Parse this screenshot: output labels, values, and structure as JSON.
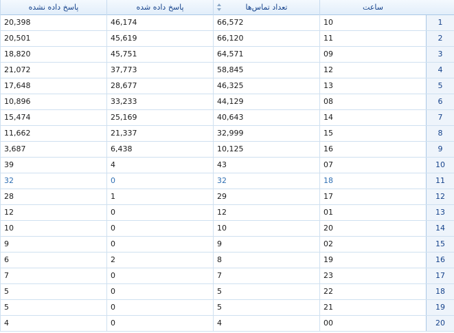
{
  "columns": {
    "hour": "ساعت",
    "calls": "تعداد تماس‌ها",
    "answered": "پاسخ داده شده",
    "unanswered": "پاسخ داده نشده"
  },
  "sort_icon": "sort-arrows-icon",
  "rows": [
    {
      "n": "1",
      "hour": "10",
      "calls": "66,572",
      "answered": "46,174",
      "unanswered": "20,398"
    },
    {
      "n": "2",
      "hour": "11",
      "calls": "66,120",
      "answered": "45,619",
      "unanswered": "20,501"
    },
    {
      "n": "3",
      "hour": "09",
      "calls": "64,571",
      "answered": "45,751",
      "unanswered": "18,820"
    },
    {
      "n": "4",
      "hour": "12",
      "calls": "58,845",
      "answered": "37,773",
      "unanswered": "21,072"
    },
    {
      "n": "5",
      "hour": "13",
      "calls": "46,325",
      "answered": "28,677",
      "unanswered": "17,648"
    },
    {
      "n": "6",
      "hour": "08",
      "calls": "44,129",
      "answered": "33,233",
      "unanswered": "10,896"
    },
    {
      "n": "7",
      "hour": "14",
      "calls": "40,643",
      "answered": "25,169",
      "unanswered": "15,474"
    },
    {
      "n": "8",
      "hour": "15",
      "calls": "32,999",
      "answered": "21,337",
      "unanswered": "11,662"
    },
    {
      "n": "9",
      "hour": "16",
      "calls": "10,125",
      "answered": "6,438",
      "unanswered": "3,687"
    },
    {
      "n": "10",
      "hour": "07",
      "calls": "43",
      "answered": "4",
      "unanswered": "39"
    },
    {
      "n": "11",
      "hour": "18",
      "calls": "32",
      "answered": "0",
      "unanswered": "32"
    },
    {
      "n": "12",
      "hour": "17",
      "calls": "29",
      "answered": "1",
      "unanswered": "28"
    },
    {
      "n": "13",
      "hour": "01",
      "calls": "12",
      "answered": "0",
      "unanswered": "12"
    },
    {
      "n": "14",
      "hour": "20",
      "calls": "10",
      "answered": "0",
      "unanswered": "10"
    },
    {
      "n": "15",
      "hour": "02",
      "calls": "9",
      "answered": "0",
      "unanswered": "9"
    },
    {
      "n": "16",
      "hour": "19",
      "calls": "8",
      "answered": "2",
      "unanswered": "6"
    },
    {
      "n": "17",
      "hour": "23",
      "calls": "7",
      "answered": "0",
      "unanswered": "7"
    },
    {
      "n": "18",
      "hour": "22",
      "calls": "5",
      "answered": "0",
      "unanswered": "5"
    },
    {
      "n": "19",
      "hour": "21",
      "calls": "5",
      "answered": "0",
      "unanswered": "5"
    },
    {
      "n": "20",
      "hour": "00",
      "calls": "4",
      "answered": "0",
      "unanswered": "4"
    }
  ]
}
